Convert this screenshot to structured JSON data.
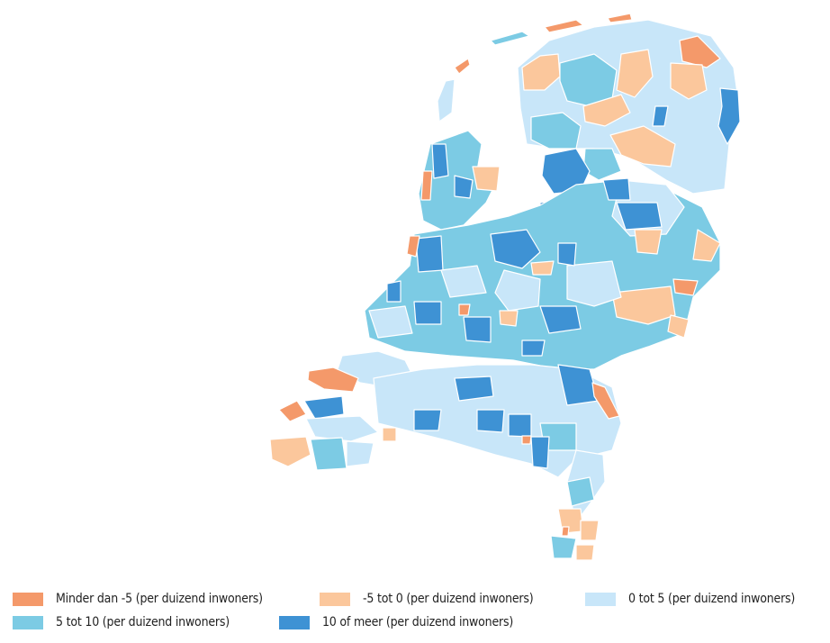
{
  "legend": {
    "items": [
      {
        "key": "c1",
        "label": "Minder dan -5 (per duizend inwoners)",
        "color": "#f4996a"
      },
      {
        "key": "c2",
        "label": "-5 tot 0 (per duizend inwoners)",
        "color": "#fbc79c"
      },
      {
        "key": "c3",
        "label": "0 tot 5 (per duizend inwoners)",
        "color": "#c8e6f9"
      },
      {
        "key": "c4",
        "label": "5 tot 10 (per duizend inwoners)",
        "color": "#7ccbe4"
      },
      {
        "key": "c5",
        "label": "10 of meer (per duizend inwoners)",
        "color": "#3e92d4"
      }
    ]
  }
}
